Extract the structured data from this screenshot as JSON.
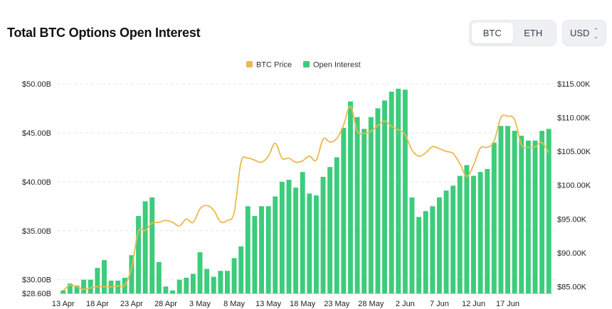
{
  "header": {
    "title": "Total BTC Options Open Interest",
    "asset_options": [
      "BTC",
      "ETH"
    ],
    "selected_asset": "BTC",
    "currency": "USD"
  },
  "colors": {
    "bar": "#3ccc7b",
    "line": "#ebb94d",
    "grid": "#e4e4e4"
  },
  "chart_data": {
    "type": "bar",
    "legend_position": "top-center",
    "legend": [
      {
        "name": "BTC Price",
        "color": "#ebb94d"
      },
      {
        "name": "Open Interest",
        "color": "#3ccc7b"
      }
    ],
    "left_axis": {
      "ylim": [
        28.6,
        50
      ],
      "ticks": [
        "$28.60B",
        "$30.00B",
        "$35.00B",
        "$40.00B",
        "$45.00B",
        "$50.00B"
      ],
      "tick_values": [
        28.6,
        30,
        35,
        40,
        45,
        50
      ]
    },
    "right_axis": {
      "ylim": [
        84000,
        115000
      ],
      "ticks": [
        "$85.00K",
        "$90.00K",
        "$95.00K",
        "$100.00K",
        "$105.00K",
        "$110.00K",
        "$115.00K"
      ],
      "tick_values": [
        85000,
        90000,
        95000,
        100000,
        105000,
        110000,
        115000
      ]
    },
    "x_tick_labels": [
      "13 Apr",
      "18 Apr",
      "23 Apr",
      "28 Apr",
      "3 May",
      "8 May",
      "13 May",
      "18 May",
      "23 May",
      "28 May",
      "2 Jun",
      "7 Jun",
      "12 Jun",
      "17 Jun"
    ],
    "x_tick_positions": [
      0,
      5,
      10,
      15,
      20,
      25,
      30,
      35,
      40,
      45,
      50,
      55,
      60,
      65
    ],
    "series": [
      {
        "name": "Open Interest",
        "axis": "left",
        "values": [
          28.9,
          29.6,
          29.4,
          30.0,
          30.0,
          31.2,
          32.0,
          29.9,
          29.9,
          30.2,
          32.5,
          36.5,
          38.0,
          38.4,
          31.8,
          29.3,
          28.9,
          30.0,
          30.2,
          30.6,
          32.8,
          31.1,
          30.3,
          30.9,
          30.9,
          32.2,
          33.4,
          37.5,
          36.5,
          37.5,
          37.5,
          38.5,
          40.0,
          40.2,
          39.4,
          41.0,
          38.8,
          38.6,
          40.5,
          41.5,
          42.5,
          45.5,
          48.2,
          46.6,
          45.4,
          46.6,
          47.5,
          48.3,
          49.2,
          49.5,
          49.4,
          38.4,
          36.4,
          37.0,
          37.5,
          38.4,
          39.1,
          39.6,
          40.6,
          41.7,
          40.6,
          41.0,
          41.3,
          44.0,
          45.7,
          45.7,
          45.2,
          44.7,
          44.2,
          44.2,
          45.2,
          45.4
        ]
      },
      {
        "name": "BTC Price",
        "axis": "right",
        "values": [
          84400,
          85200,
          85000,
          84600,
          84800,
          85000,
          85000,
          85000,
          85100,
          85200,
          87800,
          93200,
          93300,
          94400,
          94500,
          94800,
          94500,
          94000,
          95000,
          94500,
          96500,
          97000,
          96300,
          94600,
          94800,
          96000,
          103400,
          104000,
          103700,
          103400,
          104300,
          106200,
          104000,
          104000,
          103400,
          103600,
          104300,
          103700,
          106800,
          106400,
          106900,
          108900,
          111700,
          108000,
          107700,
          108000,
          108800,
          109500,
          108700,
          108200,
          107500,
          105200,
          104300,
          104800,
          105700,
          105400,
          105000,
          104700,
          103200,
          101300,
          103000,
          105500,
          105600,
          106500,
          110000,
          110200,
          109700,
          106000,
          105600,
          105700,
          106300,
          104800
        ]
      }
    ]
  }
}
